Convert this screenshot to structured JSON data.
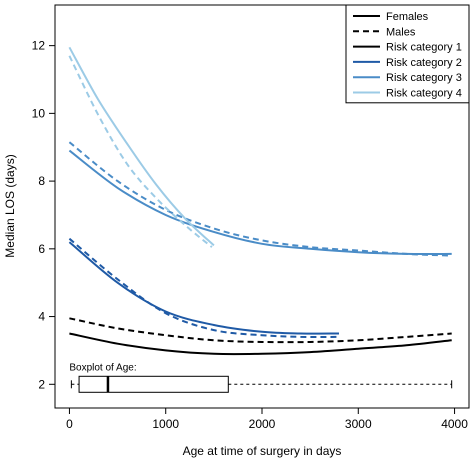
{
  "chart_data": {
    "type": "line",
    "title": "",
    "xlabel": "Age at time of surgery in days",
    "ylabel": "Median LOS (days)",
    "xlim": [
      -150,
      4150
    ],
    "ylim": [
      1.3,
      13.2
    ],
    "xticks": [
      0,
      1000,
      2000,
      3000,
      4000
    ],
    "yticks": [
      2,
      4,
      6,
      8,
      10,
      12
    ],
    "grid": false,
    "legend_position": "top-right",
    "legend": [
      {
        "label": "Females",
        "color": "#000000",
        "dash": "solid"
      },
      {
        "label": "Males",
        "color": "#000000",
        "dash": "dashed"
      },
      {
        "label": "Risk category 1",
        "color": "#000000",
        "dash": "solid"
      },
      {
        "label": "Risk category 2",
        "color": "#1f5aa6",
        "dash": "solid"
      },
      {
        "label": "Risk category 3",
        "color": "#4a8cc7",
        "dash": "solid"
      },
      {
        "label": "Risk category 4",
        "color": "#9ccbe6",
        "dash": "solid"
      }
    ],
    "series": [
      {
        "category": "1",
        "sex": "female",
        "color": "#000000",
        "dash": "solid",
        "x": [
          0,
          500,
          1000,
          1500,
          2000,
          2500,
          3000,
          3500,
          3970
        ],
        "y": [
          3.5,
          3.2,
          3.0,
          2.9,
          2.9,
          2.95,
          3.05,
          3.15,
          3.3
        ]
      },
      {
        "category": "1",
        "sex": "male",
        "color": "#000000",
        "dash": "dashed",
        "x": [
          0,
          500,
          1000,
          1500,
          2000,
          2500,
          3000,
          3500,
          3970
        ],
        "y": [
          3.95,
          3.65,
          3.45,
          3.3,
          3.25,
          3.25,
          3.3,
          3.4,
          3.5
        ]
      },
      {
        "category": "2",
        "sex": "female",
        "color": "#1f5aa6",
        "dash": "solid",
        "x": [
          0,
          500,
          1000,
          1500,
          2000,
          2400,
          2800
        ],
        "y": [
          6.2,
          5.0,
          4.15,
          3.75,
          3.55,
          3.5,
          3.5
        ]
      },
      {
        "category": "2",
        "sex": "male",
        "color": "#1f5aa6",
        "dash": "dashed",
        "x": [
          0,
          500,
          1000,
          1500,
          2000,
          2400,
          2800
        ],
        "y": [
          6.3,
          5.1,
          4.1,
          3.6,
          3.45,
          3.4,
          3.4
        ]
      },
      {
        "category": "3",
        "sex": "female",
        "color": "#4a8cc7",
        "dash": "solid",
        "x": [
          0,
          500,
          1000,
          1500,
          2000,
          2500,
          3000,
          3500,
          3970
        ],
        "y": [
          8.9,
          7.8,
          7.0,
          6.5,
          6.15,
          6.0,
          5.9,
          5.85,
          5.85
        ]
      },
      {
        "category": "3",
        "sex": "male",
        "color": "#4a8cc7",
        "dash": "dashed",
        "x": [
          0,
          500,
          1000,
          1500,
          2000,
          2500,
          3000,
          3500,
          3970
        ],
        "y": [
          9.15,
          8.0,
          7.15,
          6.6,
          6.25,
          6.05,
          5.95,
          5.85,
          5.8
        ]
      },
      {
        "category": "4",
        "sex": "female",
        "color": "#9ccbe6",
        "dash": "solid",
        "x": [
          0,
          300,
          600,
          900,
          1200,
          1500
        ],
        "y": [
          11.95,
          10.4,
          9.1,
          7.9,
          6.9,
          6.1
        ]
      },
      {
        "category": "4",
        "sex": "male",
        "color": "#9ccbe6",
        "dash": "dashed",
        "x": [
          0,
          300,
          600,
          900,
          1200,
          1480
        ],
        "y": [
          11.7,
          9.95,
          8.5,
          7.5,
          6.7,
          6.05
        ]
      }
    ],
    "boxplot": {
      "label": "Boxplot of Age:",
      "y": 2,
      "min": 20,
      "q1": 100,
      "median": 400,
      "q3": 1650,
      "max": 3970
    }
  }
}
